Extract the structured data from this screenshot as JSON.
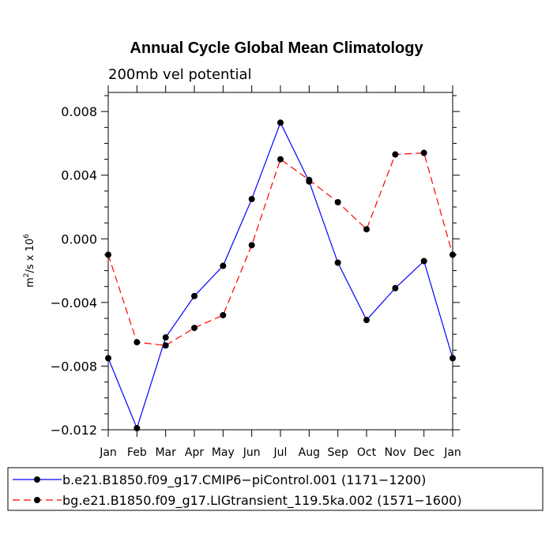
{
  "chart_data": {
    "type": "line",
    "title": "Annual Cycle Global Mean Climatology",
    "subtitle": "200mb vel potential",
    "ylabel": "m²/s x 10⁶",
    "ylabel_base": "m",
    "ylabel_sup1": "2",
    "ylabel_mid": "/s x 10",
    "ylabel_sup2": "6",
    "ylim": [
      -0.012,
      0.0092
    ],
    "yticks": [
      -0.012,
      -0.008,
      -0.004,
      0.0,
      0.004,
      0.008
    ],
    "ytick_labels": [
      "−0.012",
      "−0.008",
      "−0.004",
      "0.000",
      "0.004",
      "0.008"
    ],
    "categories": [
      "Jan",
      "Feb",
      "Mar",
      "Apr",
      "May",
      "Jun",
      "Jul",
      "Aug",
      "Sep",
      "Oct",
      "Nov",
      "Dec",
      "Jan"
    ],
    "series": [
      {
        "name": "b.e21.B1850.f09_g17.CMIP6−piControl.001 (1171−1200)",
        "color": "#0000ff",
        "dash": "solid",
        "values": [
          -0.0075,
          -0.0119,
          -0.0062,
          -0.0036,
          -0.0017,
          0.0025,
          0.0073,
          0.0036,
          -0.0015,
          -0.0051,
          -0.0031,
          -0.0014,
          -0.0075
        ]
      },
      {
        "name": "bg.e21.B1850.f09_g17.LIGtransient_119.5ka.002 (1571−1600)",
        "color": "#ff0000",
        "dash": "dashed",
        "values": [
          -0.001,
          -0.0065,
          -0.0067,
          -0.0056,
          -0.0048,
          -0.0004,
          0.005,
          0.0037,
          0.0023,
          0.0006,
          0.0053,
          0.0054,
          -0.001
        ]
      }
    ],
    "legend_position": "bottom"
  }
}
